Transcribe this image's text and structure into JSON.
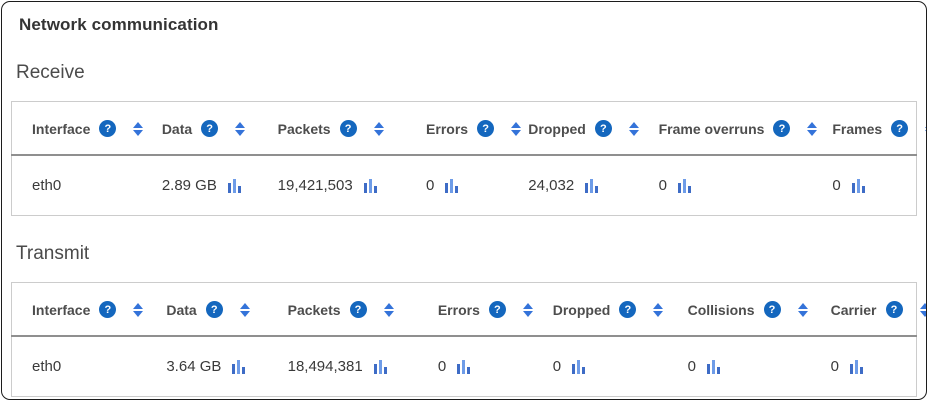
{
  "page": {
    "title": "Network communication"
  },
  "colors": {
    "help_icon_bg": "#1467be",
    "sort_icon": "#3473d9",
    "chart_bar_dark": "#3e6cc6",
    "chart_bar_light": "#6e9ce8",
    "header_divider": "#8f8f8f",
    "table_border": "#cccccc"
  },
  "icons": {
    "help": "question-mark-circle-icon",
    "sort": "sort-arrows-icon",
    "chart": "mini-bar-chart-icon"
  },
  "sections": [
    {
      "heading": "Receive",
      "columns": [
        "Interface",
        "Data",
        "Packets",
        "Errors",
        "Dropped",
        "Frame overruns",
        "Frames"
      ],
      "rows": [
        [
          "eth0",
          "2.89 GB",
          "19,421,503",
          "0",
          "24,032",
          "0",
          "0"
        ]
      ]
    },
    {
      "heading": "Transmit",
      "columns": [
        "Interface",
        "Data",
        "Packets",
        "Errors",
        "Dropped",
        "Collisions",
        "Carrier"
      ],
      "rows": [
        [
          "eth0",
          "3.64 GB",
          "18,494,381",
          "0",
          "0",
          "0",
          "0"
        ]
      ]
    }
  ]
}
